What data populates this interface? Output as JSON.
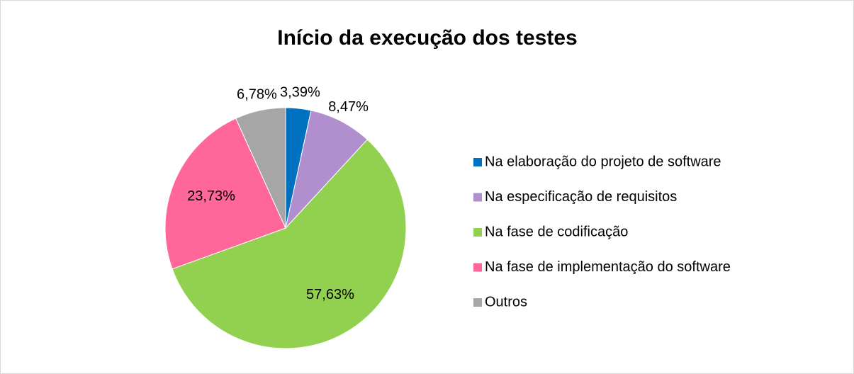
{
  "chart_data": {
    "type": "pie",
    "title": "Início da execução dos testes",
    "categories": [
      "Na elaboração do projeto de software",
      "Na especificação de requisitos",
      "Na fase de codificação",
      "Na fase de implementação do software",
      "Outros"
    ],
    "values": [
      3.39,
      8.47,
      57.63,
      23.73,
      6.78
    ],
    "value_labels": [
      "3,39%",
      "8,47%",
      "57,63%",
      "23,73%",
      "6,78%"
    ],
    "colors": [
      "#0070c0",
      "#b18fcf",
      "#92d050",
      "#ff6699",
      "#a6a6a6"
    ],
    "legend": "right"
  }
}
